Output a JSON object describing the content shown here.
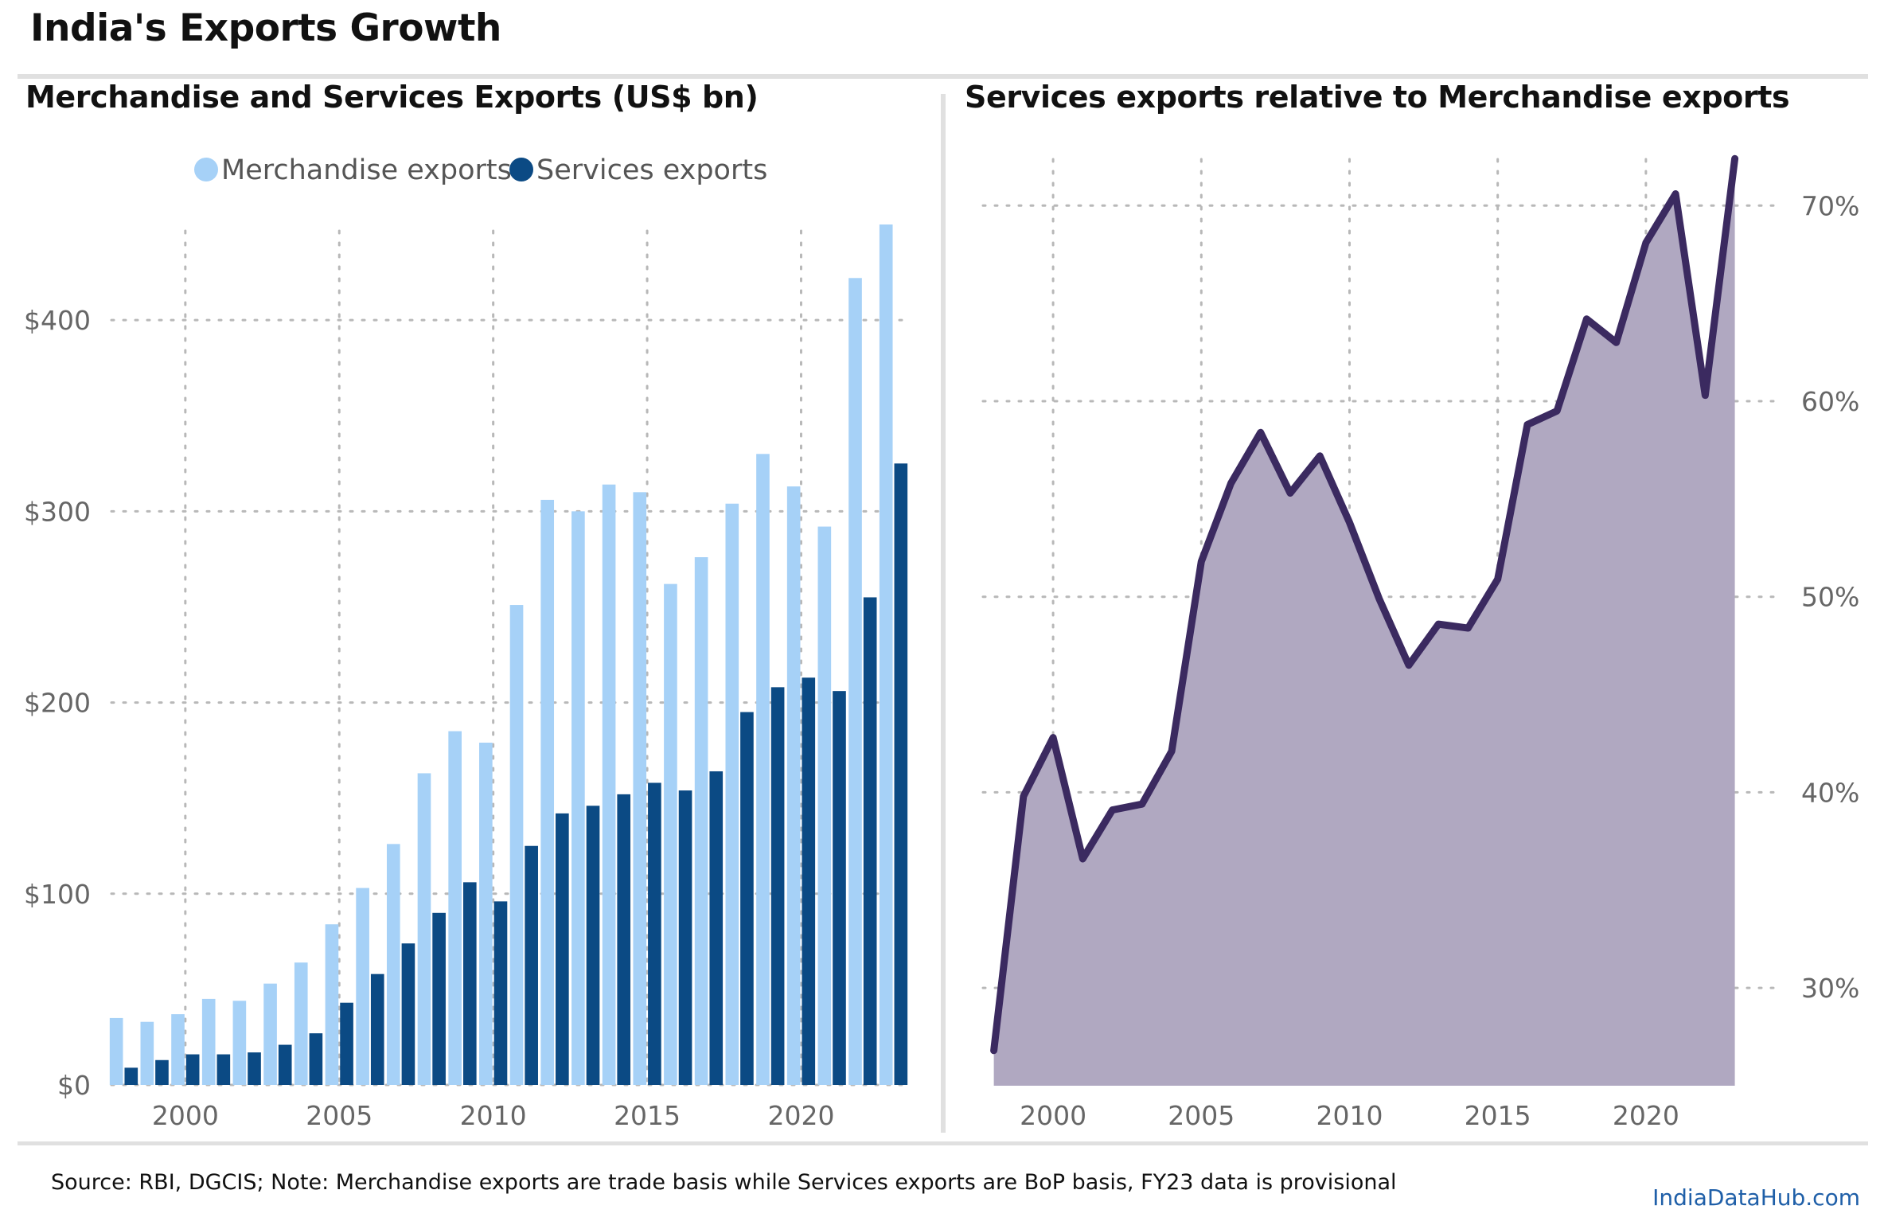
{
  "title": "India's Exports Growth",
  "source": "Source: RBI, DGCIS; Note: Merchandise exports are trade basis while Services exports are BoP basis, FY23 data is provisional",
  "site": "IndiaDataHub.com",
  "colors": {
    "merchandise": "#a6d1f7",
    "services": "#0b4a84",
    "ratio_line": "#3b2a60",
    "ratio_fill": "#b0a8c1",
    "grid": "#b8b8b8",
    "tick": "#666666"
  },
  "chart_data": [
    {
      "type": "bar",
      "title": "Merchandise and Services Exports (US$ bn)",
      "x": [
        1998,
        1999,
        2000,
        2001,
        2002,
        2003,
        2004,
        2005,
        2006,
        2007,
        2008,
        2009,
        2010,
        2011,
        2012,
        2013,
        2014,
        2015,
        2016,
        2017,
        2018,
        2019,
        2020,
        2021,
        2022,
        2023
      ],
      "series": [
        {
          "name": "Merchandise exports",
          "values": [
            35,
            33,
            37,
            45,
            44,
            53,
            64,
            84,
            103,
            126,
            163,
            185,
            179,
            251,
            306,
            300,
            314,
            310,
            262,
            276,
            304,
            330,
            313,
            292,
            422,
            450
          ]
        },
        {
          "name": "Services exports",
          "values": [
            9,
            13,
            16,
            16,
            17,
            21,
            27,
            43,
            58,
            74,
            90,
            106,
            96,
            125,
            142,
            146,
            152,
            158,
            154,
            164,
            195,
            208,
            213,
            206,
            255,
            325
          ]
        }
      ],
      "xticks": [
        2000,
        2005,
        2010,
        2015,
        2020
      ],
      "yticks": [
        0,
        100,
        200,
        300,
        400
      ],
      "ytick_labels": [
        "$0",
        "$100",
        "$200",
        "$300",
        "$400"
      ],
      "ylim": [
        0,
        460
      ],
      "xlim": [
        1997.6,
        2023.4
      ],
      "legend_position": "top-center",
      "grid": true
    },
    {
      "type": "area",
      "title": "Services exports relative to Merchandise exports",
      "x": [
        1998,
        1999,
        2000,
        2001,
        2002,
        2003,
        2004,
        2005,
        2006,
        2007,
        2008,
        2009,
        2010,
        2011,
        2012,
        2013,
        2014,
        2015,
        2016,
        2017,
        2018,
        2019,
        2020,
        2021,
        2022,
        2023
      ],
      "values": [
        26.8,
        39.8,
        42.8,
        36.6,
        39.1,
        39.4,
        42.1,
        51.8,
        55.8,
        58.4,
        55.3,
        57.2,
        53.8,
        49.9,
        46.5,
        48.6,
        48.4,
        50.9,
        58.8,
        59.5,
        64.2,
        63.0,
        68.1,
        70.6,
        60.3,
        72.4
      ],
      "yticks": [
        30,
        40,
        50,
        60,
        70
      ],
      "ytick_labels": [
        "30%",
        "40%",
        "50%",
        "60%",
        "70%"
      ],
      "xticks": [
        2000,
        2005,
        2010,
        2015,
        2020
      ],
      "ylim": [
        25,
        74
      ],
      "xlim": [
        1997.5,
        2024.3
      ],
      "yaxis_side": "right",
      "grid": true
    }
  ]
}
